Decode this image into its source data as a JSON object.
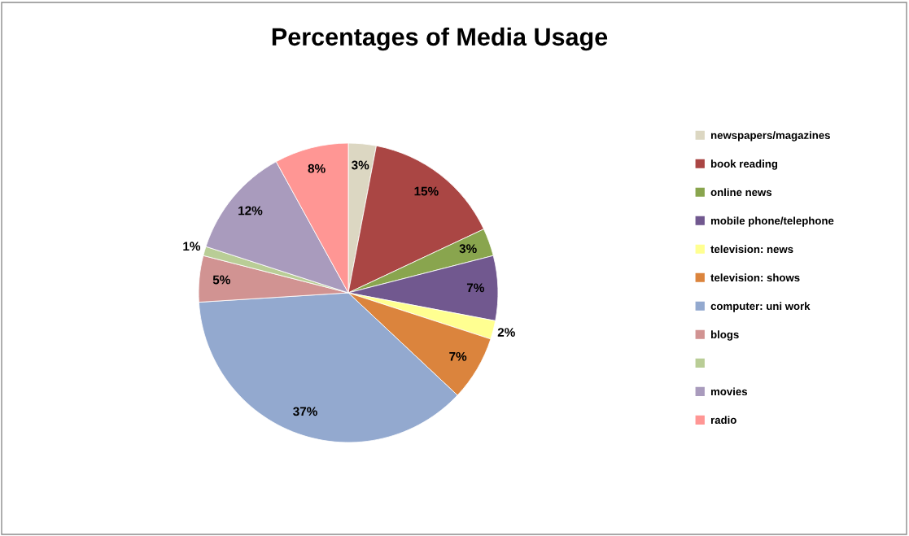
{
  "chart_data": {
    "type": "pie",
    "title": "Percentages of Media Usage",
    "categories": [
      "newspapers/magazines",
      "book reading",
      "online news",
      "mobile phone/telephone",
      "television: news",
      "television: shows",
      "computer: uni work",
      "blogs",
      null,
      "movies",
      "radio"
    ],
    "values": [
      3,
      15,
      3,
      7,
      2,
      7,
      37,
      5,
      1,
      12,
      8
    ],
    "colors": [
      "#dcd7c2",
      "#aa4644",
      "#89a54e",
      "#71588f",
      "#ffff91",
      "#db843d",
      "#93a9cf",
      "#d19392",
      "#b9cd96",
      "#a99bbd",
      "#ff9694"
    ],
    "value_labels": [
      "3%",
      "15%",
      "3%",
      "7%",
      "2%",
      "7%",
      "37%",
      "5%",
      "1%",
      "12%",
      "8%"
    ],
    "legend": "right"
  }
}
